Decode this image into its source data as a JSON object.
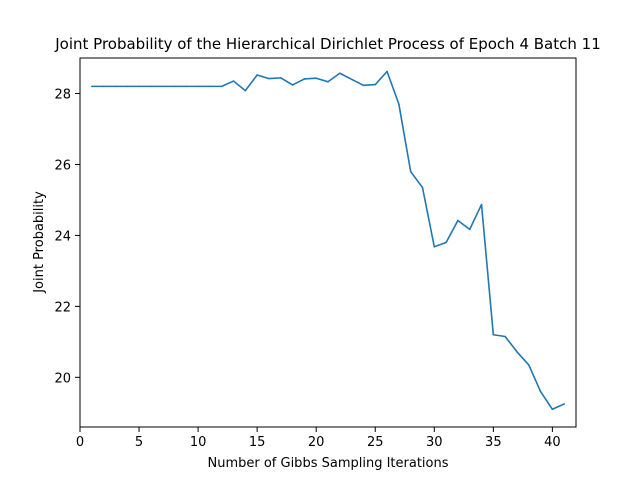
{
  "chart_data": {
    "type": "line",
    "title": "Joint Probability of the Hierarchical Dirichlet Process of Epoch 4 Batch 11",
    "xlabel": "Number of Gibbs Sampling Iterations",
    "ylabel": "Joint Probability",
    "xlim": [
      -0.0,
      42.0
    ],
    "ylim": [
      18.6,
      29.0
    ],
    "xticks": [
      0,
      5,
      10,
      15,
      20,
      25,
      30,
      35,
      40
    ],
    "yticks": [
      20,
      22,
      24,
      26,
      28
    ],
    "grid": false,
    "legend": "none",
    "series": [
      {
        "color": "#1f77b4",
        "x": [
          1,
          2,
          3,
          4,
          5,
          6,
          7,
          8,
          9,
          10,
          11,
          12,
          13,
          14,
          15,
          16,
          17,
          18,
          19,
          20,
          21,
          22,
          23,
          24,
          25,
          26,
          27,
          28,
          29,
          30,
          31,
          32,
          33,
          34,
          35,
          36,
          37,
          38,
          39,
          40,
          41
        ],
        "values": [
          28.2,
          28.2,
          28.2,
          28.2,
          28.2,
          28.2,
          28.2,
          28.2,
          28.2,
          28.2,
          28.2,
          28.2,
          28.35,
          28.08,
          28.52,
          28.42,
          28.44,
          28.24,
          28.41,
          28.43,
          28.33,
          28.57,
          28.4,
          28.23,
          28.25,
          28.62,
          27.7,
          25.8,
          25.35,
          23.68,
          23.8,
          24.42,
          24.17,
          24.87,
          21.2,
          21.15,
          20.72,
          20.35,
          19.6,
          19.1,
          19.25
        ]
      }
    ]
  }
}
